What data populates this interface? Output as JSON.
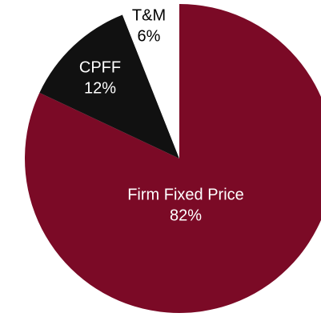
{
  "chart_data": {
    "type": "pie",
    "categories": [
      "Firm Fixed Price",
      "CPFF",
      "T&M"
    ],
    "values": [
      82,
      12,
      6
    ],
    "value_labels": [
      "82%",
      "12%",
      "6%"
    ],
    "colors": [
      "#7b0a26",
      "#111111",
      "#ffffff"
    ],
    "label_colors": [
      "#ffffff",
      "#ffffff",
      "#000000"
    ]
  }
}
